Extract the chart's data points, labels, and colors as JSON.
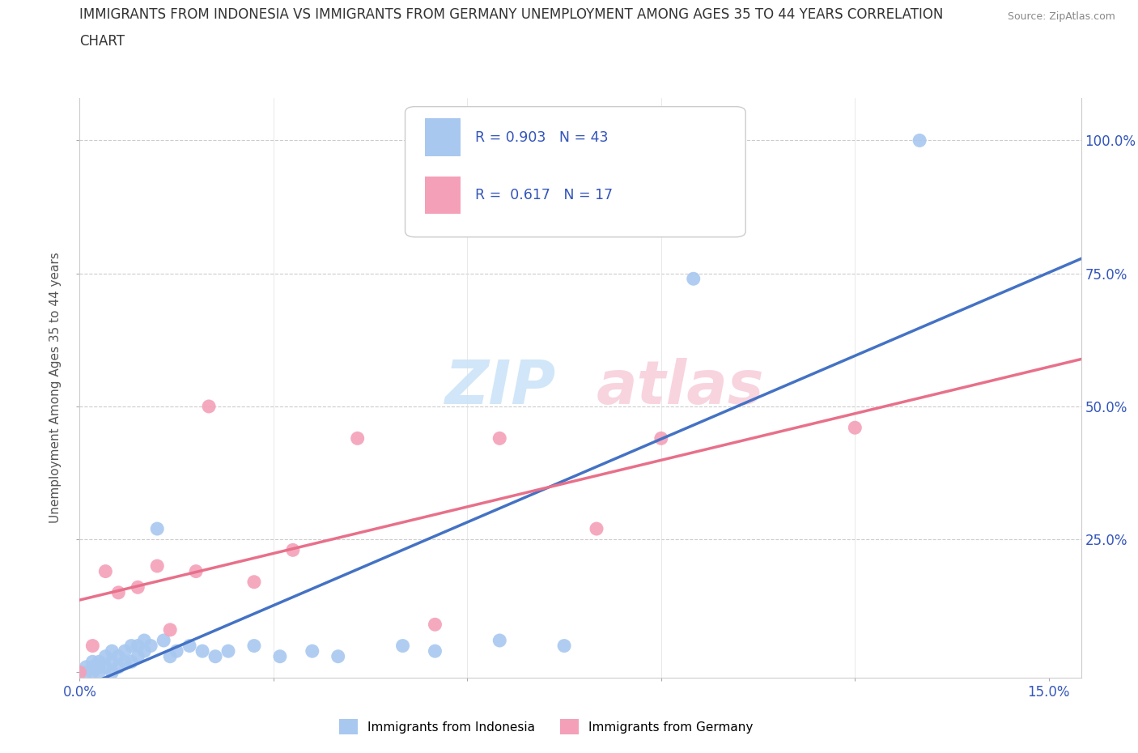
{
  "title_line1": "IMMIGRANTS FROM INDONESIA VS IMMIGRANTS FROM GERMANY UNEMPLOYMENT AMONG AGES 35 TO 44 YEARS CORRELATION",
  "title_line2": "CHART",
  "source_text": "Source: ZipAtlas.com",
  "ylabel": "Unemployment Among Ages 35 to 44 years",
  "xlim": [
    0.0,
    0.155
  ],
  "ylim": [
    -0.01,
    1.08
  ],
  "x_ticks": [
    0.0,
    0.03,
    0.06,
    0.09,
    0.12,
    0.15
  ],
  "x_tick_labels": [
    "0.0%",
    "",
    "",
    "",
    "",
    "15.0%"
  ],
  "y_ticks": [
    0.0,
    0.25,
    0.5,
    0.75,
    1.0
  ],
  "y_tick_labels": [
    "",
    "25.0%",
    "50.0%",
    "75.0%",
    "100.0%"
  ],
  "indonesia_color": "#a8c8f0",
  "germany_color": "#f4a0b8",
  "indonesia_line_color": "#4472c4",
  "germany_line_color": "#e8708a",
  "indonesia_R": 0.903,
  "indonesia_N": 43,
  "germany_R": 0.617,
  "germany_N": 17,
  "legend_text_color": "#3355bb",
  "tick_label_color": "#3355bb",
  "watermark_zip_color": "#cce4f8",
  "watermark_atlas_color": "#f8d0dc",
  "indonesia_x": [
    0.0,
    0.001,
    0.001,
    0.002,
    0.002,
    0.002,
    0.003,
    0.003,
    0.003,
    0.004,
    0.004,
    0.005,
    0.005,
    0.005,
    0.006,
    0.006,
    0.007,
    0.007,
    0.008,
    0.008,
    0.009,
    0.009,
    0.01,
    0.01,
    0.011,
    0.012,
    0.013,
    0.014,
    0.015,
    0.017,
    0.019,
    0.021,
    0.023,
    0.027,
    0.031,
    0.036,
    0.04,
    0.05,
    0.055,
    0.065,
    0.075,
    0.095,
    0.13
  ],
  "indonesia_y": [
    0.0,
    0.0,
    0.01,
    0.0,
    0.01,
    0.02,
    0.0,
    0.01,
    0.02,
    0.01,
    0.03,
    0.0,
    0.02,
    0.04,
    0.01,
    0.03,
    0.02,
    0.04,
    0.02,
    0.05,
    0.03,
    0.05,
    0.04,
    0.06,
    0.05,
    0.27,
    0.06,
    0.03,
    0.04,
    0.05,
    0.04,
    0.03,
    0.04,
    0.05,
    0.03,
    0.04,
    0.03,
    0.05,
    0.04,
    0.06,
    0.05,
    0.74,
    1.0
  ],
  "germany_x": [
    0.0,
    0.002,
    0.004,
    0.006,
    0.009,
    0.012,
    0.014,
    0.018,
    0.02,
    0.027,
    0.033,
    0.043,
    0.055,
    0.065,
    0.08,
    0.09,
    0.12
  ],
  "germany_y": [
    0.0,
    0.05,
    0.19,
    0.15,
    0.16,
    0.2,
    0.08,
    0.19,
    0.5,
    0.17,
    0.23,
    0.44,
    0.09,
    0.44,
    0.27,
    0.44,
    0.46
  ]
}
